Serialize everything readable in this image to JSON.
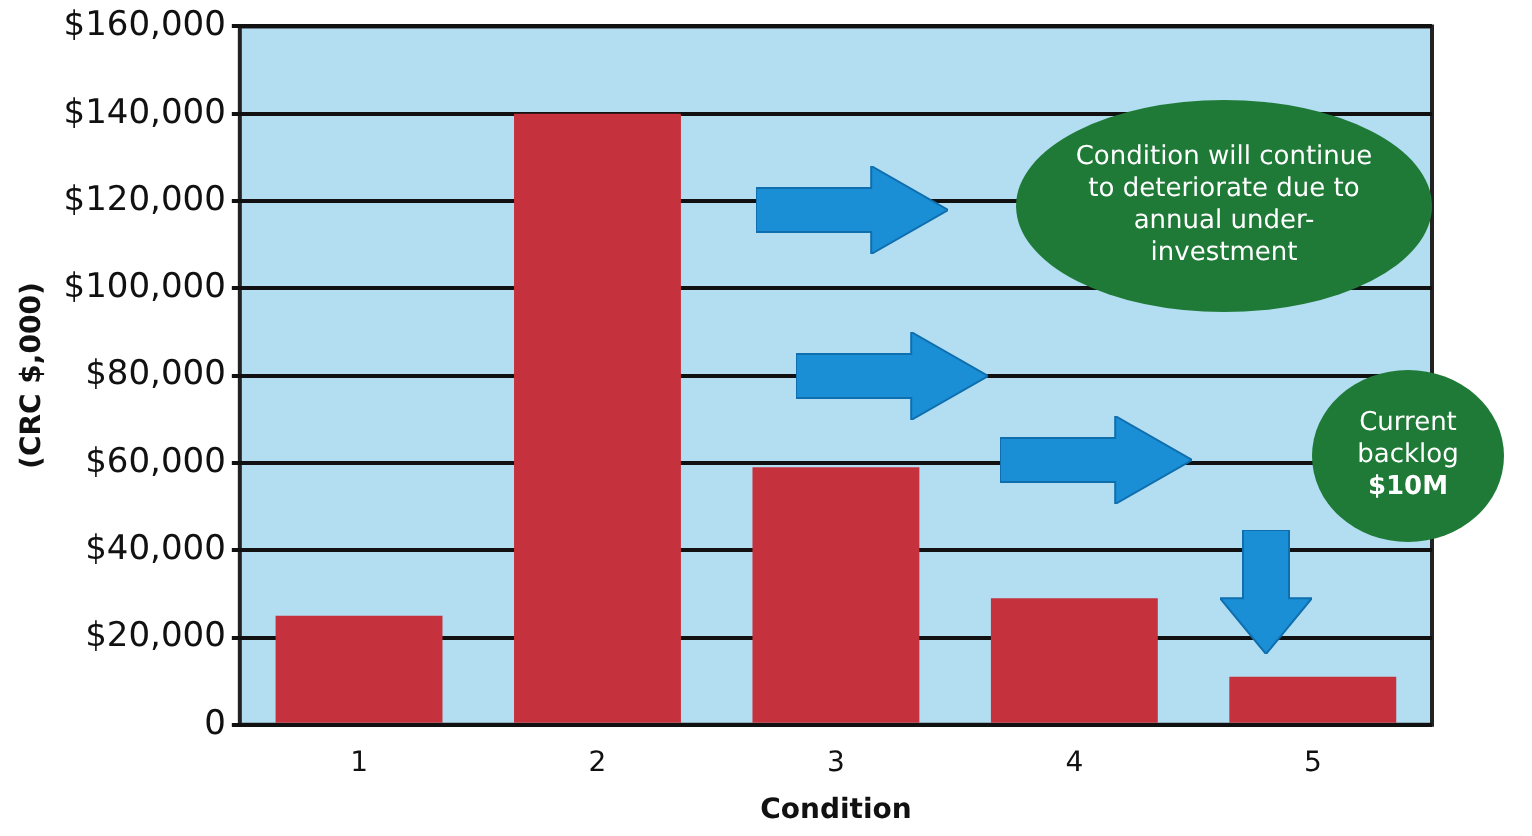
{
  "chart_data": {
    "type": "bar",
    "xlabel": "Condition",
    "ylabel": "(CRC $,000)",
    "categories": [
      "1",
      "2",
      "3",
      "4",
      "5"
    ],
    "values": [
      25000,
      140000,
      59000,
      29000,
      11000
    ],
    "color": "#c5323d",
    "ylim": [
      0,
      160000
    ],
    "yticks": [
      {
        "value": 0,
        "label": "0"
      },
      {
        "value": 20000,
        "label": "$20,000"
      },
      {
        "value": 40000,
        "label": "$40,000"
      },
      {
        "value": 60000,
        "label": "$60,000"
      },
      {
        "value": 80000,
        "label": "$80,000"
      },
      {
        "value": 100000,
        "label": "$100,000"
      },
      {
        "value": 120000,
        "label": "$120,000"
      },
      {
        "value": 140000,
        "label": "$140,000"
      },
      {
        "value": 160000,
        "label": "$160,000"
      }
    ],
    "grid": "y",
    "legend": false,
    "annotations": [
      "Condition will continue to deteriorate due to annual under-investment",
      "Current backlog $10M"
    ]
  }
}
